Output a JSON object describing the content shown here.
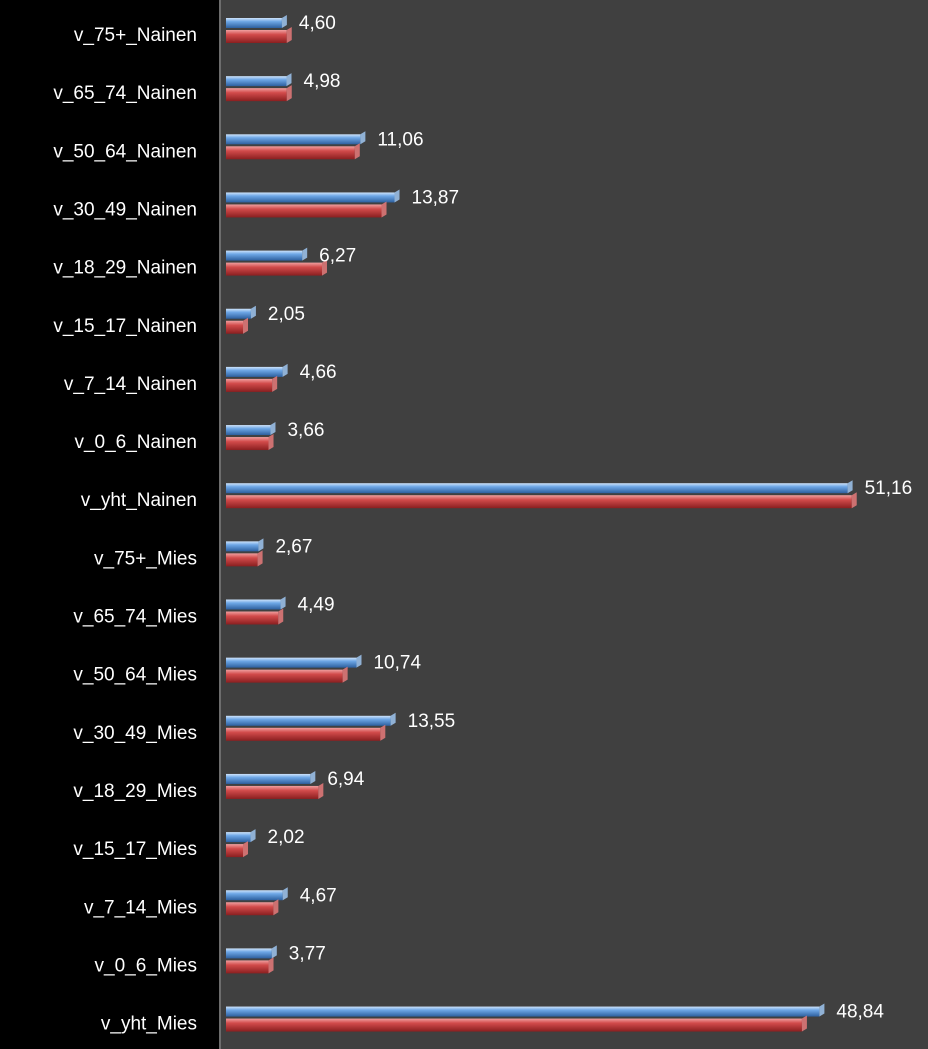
{
  "chart_data": {
    "type": "bar",
    "orientation": "horizontal",
    "categories": [
      "v_75+_Nainen",
      "v_65_74_Nainen",
      "v_50_64_Nainen",
      "v_30_49_Nainen",
      "v_18_29_Nainen",
      "v_15_17_Nainen",
      "v_7_14_Nainen",
      "v_0_6_Nainen",
      "v_yht_Nainen",
      "v_75+_Mies",
      "v_65_74_Mies",
      "v_50_64_Mies",
      "v_30_49_Mies",
      "v_18_29_Mies",
      "v_15_17_Mies",
      "v_7_14_Mies",
      "v_0_6_Mies",
      "v_yht_Mies"
    ],
    "series": [
      {
        "color": "#4f8fd8",
        "values": [
          4.6,
          4.98,
          11.06,
          13.87,
          6.27,
          2.05,
          4.66,
          3.66,
          51.16,
          2.67,
          4.49,
          10.74,
          13.55,
          6.94,
          2.02,
          4.67,
          3.77,
          48.84
        ]
      },
      {
        "color": "#c0393b",
        "values": [
          5.0,
          5.0,
          10.6,
          12.8,
          7.9,
          1.4,
          3.8,
          3.5,
          51.5,
          2.6,
          4.3,
          9.6,
          12.7,
          7.6,
          1.4,
          3.9,
          3.5,
          47.4
        ]
      }
    ],
    "data_labels": [
      "4,60",
      "4,98",
      "11,06",
      "13,87",
      "6,27",
      "2,05",
      "4,66",
      "3,66",
      "51,16",
      "2,67",
      "4,49",
      "10,74",
      "13,55",
      "6,94",
      "2,02",
      "4,67",
      "3,77",
      "48,84"
    ],
    "xlim": [
      0,
      55
    ],
    "grid": false,
    "legend": "none",
    "colors": {
      "plot_background": "#404040",
      "page_background": "#000000",
      "text": "#ffffff"
    }
  }
}
